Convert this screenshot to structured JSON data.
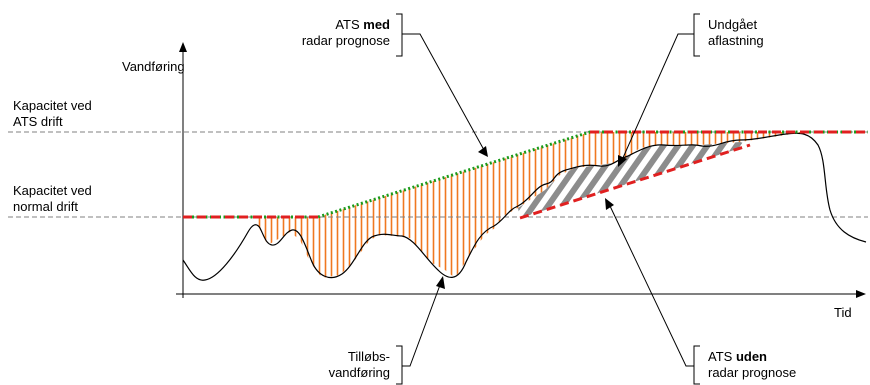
{
  "axes": {
    "y_label": "Vandføring",
    "x_label": "Tid"
  },
  "levels": {
    "ats_capacity": [
      "Kapacitet ved",
      "ATS drift"
    ],
    "normal_capacity": [
      "Kapacitet ved",
      "normal drift"
    ]
  },
  "callouts": {
    "ats_med": {
      "prefix": "ATS ",
      "bold": "med",
      "line2": "radar prognose"
    },
    "undgaaet": [
      "Undgået",
      "aflastning"
    ],
    "tillob": [
      "Tilløbs-",
      "vandføring"
    ],
    "ats_uden": {
      "prefix": "ATS ",
      "bold": "uden",
      "line2": "radar prognose"
    }
  },
  "colors": {
    "inflow_curve": "#000000",
    "capacity_lines": "#808080",
    "ats_with_radar": "#1a9a1a",
    "ats_without_radar": "#e02020",
    "storage_hatch": "#f07820",
    "avoided_hatch": "#909090"
  }
}
